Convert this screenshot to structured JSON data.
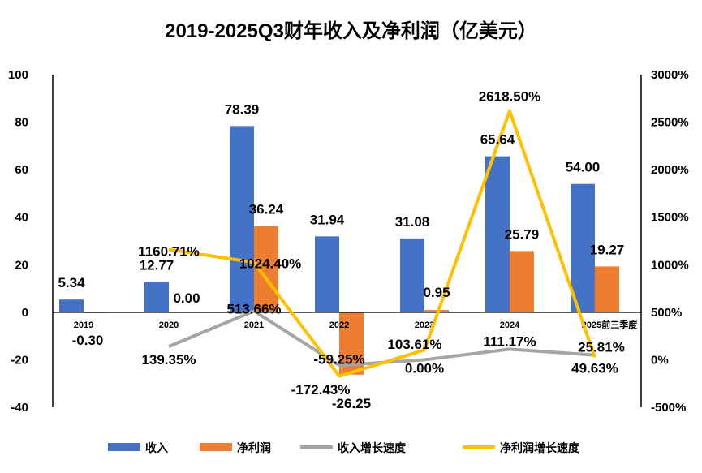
{
  "chart_data": {
    "type": "bar+line",
    "title": "2019-2025Q3财年收入及净利润（亿美元）",
    "categories": [
      "2019",
      "2020",
      "2021",
      "2022",
      "2023",
      "2024",
      "2025前三季度"
    ],
    "left_axis": {
      "range": [
        -40,
        100
      ],
      "ticks": [
        "-40",
        "-20",
        "0",
        "20",
        "40",
        "60",
        "80",
        "100"
      ]
    },
    "right_axis": {
      "range": [
        -500,
        3000
      ],
      "ticks": [
        "-500%",
        "0%",
        "500%",
        "1000%",
        "1500%",
        "2000%",
        "2500%",
        "3000%"
      ]
    },
    "grid": false,
    "legend_position": "bottom",
    "series": [
      {
        "name": "收入",
        "type": "bar",
        "axis": "left",
        "color": "#4472C4",
        "values": [
          5.34,
          12.77,
          78.39,
          31.94,
          31.08,
          65.64,
          54.0
        ],
        "labels": [
          "5.34",
          "12.77",
          "78.39",
          "31.94",
          "31.08",
          "65.64",
          "54.00"
        ]
      },
      {
        "name": "净利润",
        "type": "bar",
        "axis": "left",
        "color": "#ED7D31",
        "values": [
          -0.3,
          0.0,
          36.24,
          -26.25,
          0.95,
          25.79,
          19.27
        ],
        "labels": [
          "-0.30",
          "0.00",
          "36.24",
          "-26.25",
          "0.95",
          "25.79",
          "19.27"
        ]
      },
      {
        "name": "收入增长速度",
        "type": "line",
        "axis": "right",
        "color": "#A5A5A5",
        "values": [
          null,
          139.35,
          513.66,
          -59.25,
          0.0,
          111.17,
          49.63
        ],
        "labels": [
          "",
          "139.35%",
          "513.66%",
          "-59.25%",
          "0.00%",
          "111.17%",
          "49.63%"
        ]
      },
      {
        "name": "净利润增长速度",
        "type": "line",
        "axis": "right",
        "color": "#FFC000",
        "values": [
          null,
          1160.71,
          1024.4,
          -172.43,
          103.61,
          2618.5,
          25.81
        ],
        "labels": [
          "",
          "1160.71%",
          "1024.40%",
          "-172.43%",
          "103.61%",
          "2618.50%",
          "25.81%"
        ]
      }
    ]
  }
}
